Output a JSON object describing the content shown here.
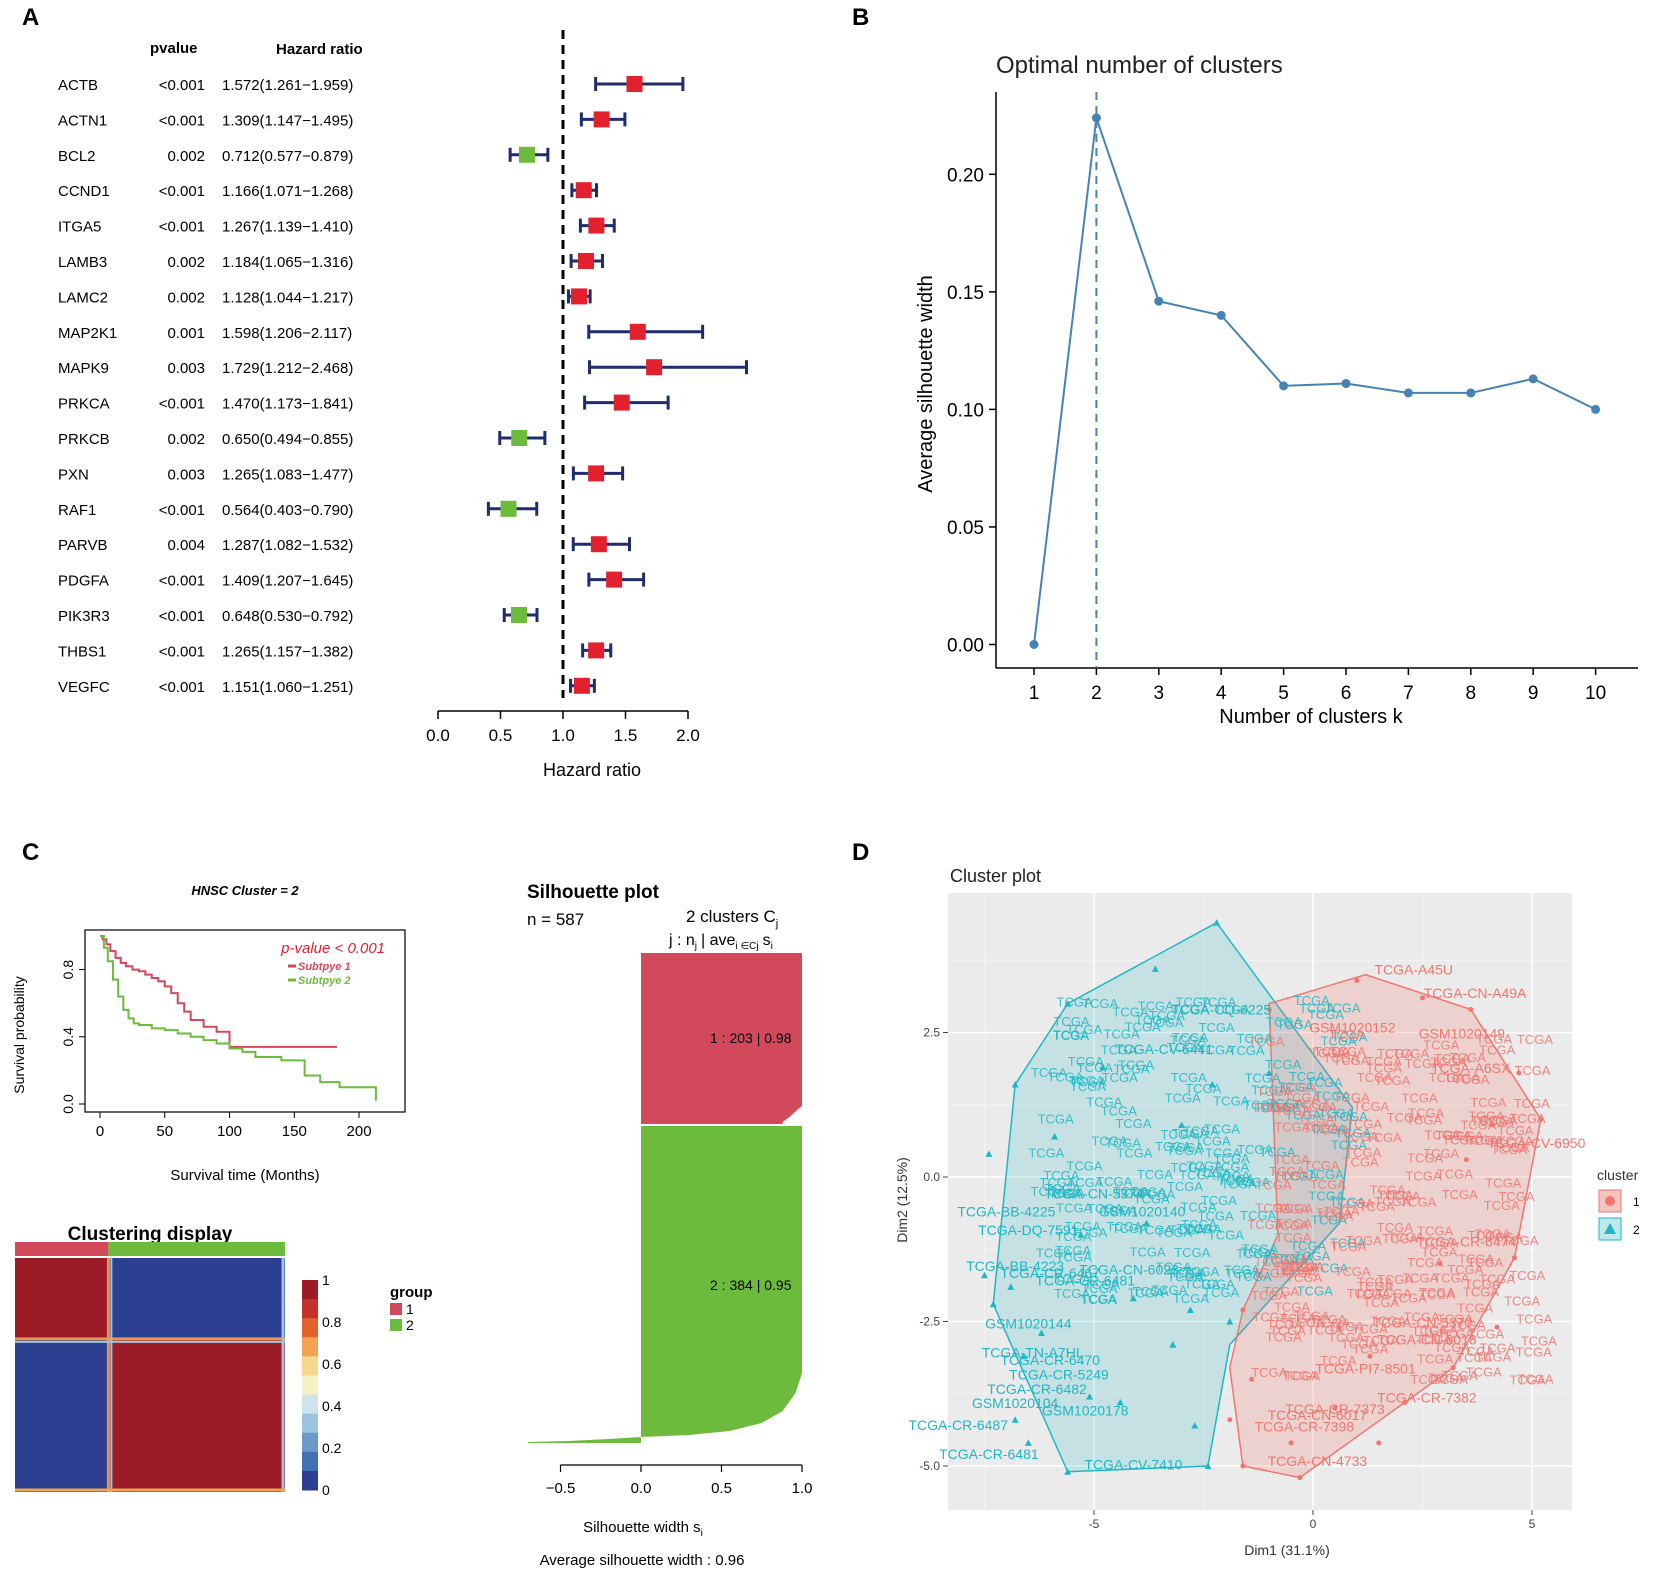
{
  "panels": {
    "A": "A",
    "B": "B",
    "C": "C",
    "D": "D"
  },
  "chart_data": [
    {
      "type": "forest",
      "panel": "A",
      "header_pvalue": "pvalue",
      "header_hr": "Hazard ratio",
      "xlabel": "Hazard ratio",
      "xlim": [
        0,
        2.0
      ],
      "xticks": [
        "0.0",
        "0.5",
        "1.0",
        "1.5",
        "2.0"
      ],
      "reference_line": 1.0,
      "colors": {
        "risk": "#e3202e",
        "protective": "#6cbb3c",
        "ci": "#1f2d6e"
      },
      "rows": [
        {
          "gene": "ACTB",
          "pvalue": "<0.001",
          "hr_text": "1.572(1.261−1.959)",
          "hr": 1.572,
          "lo": 1.261,
          "hi": 1.959
        },
        {
          "gene": "ACTN1",
          "pvalue": "<0.001",
          "hr_text": "1.309(1.147−1.495)",
          "hr": 1.309,
          "lo": 1.147,
          "hi": 1.495
        },
        {
          "gene": "BCL2",
          "pvalue": "0.002",
          "hr_text": "0.712(0.577−0.879)",
          "hr": 0.712,
          "lo": 0.577,
          "hi": 0.879
        },
        {
          "gene": "CCND1",
          "pvalue": "<0.001",
          "hr_text": "1.166(1.071−1.268)",
          "hr": 1.166,
          "lo": 1.071,
          "hi": 1.268
        },
        {
          "gene": "ITGA5",
          "pvalue": "<0.001",
          "hr_text": "1.267(1.139−1.410)",
          "hr": 1.267,
          "lo": 1.139,
          "hi": 1.41
        },
        {
          "gene": "LAMB3",
          "pvalue": "0.002",
          "hr_text": "1.184(1.065−1.316)",
          "hr": 1.184,
          "lo": 1.065,
          "hi": 1.316
        },
        {
          "gene": "LAMC2",
          "pvalue": "0.002",
          "hr_text": "1.128(1.044−1.217)",
          "hr": 1.128,
          "lo": 1.044,
          "hi": 1.217
        },
        {
          "gene": "MAP2K1",
          "pvalue": "0.001",
          "hr_text": "1.598(1.206−2.117)",
          "hr": 1.598,
          "lo": 1.206,
          "hi": 2.117
        },
        {
          "gene": "MAPK9",
          "pvalue": "0.003",
          "hr_text": "1.729(1.212−2.468)",
          "hr": 1.729,
          "lo": 1.212,
          "hi": 2.468
        },
        {
          "gene": "PRKCA",
          "pvalue": "<0.001",
          "hr_text": "1.470(1.173−1.841)",
          "hr": 1.47,
          "lo": 1.173,
          "hi": 1.841
        },
        {
          "gene": "PRKCB",
          "pvalue": "0.002",
          "hr_text": "0.650(0.494−0.855)",
          "hr": 0.65,
          "lo": 0.494,
          "hi": 0.855
        },
        {
          "gene": "PXN",
          "pvalue": "0.003",
          "hr_text": "1.265(1.083−1.477)",
          "hr": 1.265,
          "lo": 1.083,
          "hi": 1.477
        },
        {
          "gene": "RAF1",
          "pvalue": "<0.001",
          "hr_text": "0.564(0.403−0.790)",
          "hr": 0.564,
          "lo": 0.403,
          "hi": 0.79
        },
        {
          "gene": "PARVB",
          "pvalue": "0.004",
          "hr_text": "1.287(1.082−1.532)",
          "hr": 1.287,
          "lo": 1.082,
          "hi": 1.532
        },
        {
          "gene": "PDGFA",
          "pvalue": "<0.001",
          "hr_text": "1.409(1.207−1.645)",
          "hr": 1.409,
          "lo": 1.207,
          "hi": 1.645
        },
        {
          "gene": "PIK3R3",
          "pvalue": "<0.001",
          "hr_text": "0.648(0.530−0.792)",
          "hr": 0.648,
          "lo": 0.53,
          "hi": 0.792
        },
        {
          "gene": "THBS1",
          "pvalue": "<0.001",
          "hr_text": "1.265(1.157−1.382)",
          "hr": 1.265,
          "lo": 1.157,
          "hi": 1.382
        },
        {
          "gene": "VEGFC",
          "pvalue": "<0.001",
          "hr_text": "1.151(1.060−1.251)",
          "hr": 1.151,
          "lo": 1.06,
          "hi": 1.251
        }
      ]
    },
    {
      "type": "line",
      "panel": "B",
      "title": "Optimal number of clusters",
      "xlabel": "Number of clusters k",
      "ylabel": "Average silhouette width",
      "x": [
        1,
        2,
        3,
        4,
        5,
        6,
        7,
        8,
        9,
        10
      ],
      "y": [
        0.0,
        0.224,
        0.146,
        0.14,
        0.11,
        0.111,
        0.107,
        0.107,
        0.113,
        0.1
      ],
      "ylim": [
        -0.01,
        0.235
      ],
      "yticks": [
        "0.00",
        "0.05",
        "0.10",
        "0.15",
        "0.20"
      ],
      "optimal_k": 2,
      "color": "#4682b4"
    },
    {
      "type": "line",
      "panel": "C-survival",
      "title": "HNSC Cluster = 2",
      "xlabel": "Survival time (Months)",
      "ylabel": "Survival probability",
      "pvalue_label": "p-value < 0.001",
      "xticks": [
        "0",
        "50",
        "100",
        "150",
        "200"
      ],
      "yticks": [
        "0.0",
        "0.4",
        "0.8"
      ],
      "xlim": [
        0,
        220
      ],
      "ylim": [
        0,
        1.0
      ],
      "series": [
        {
          "name": "Subtpye 1",
          "color": "#d1495b",
          "x": [
            0,
            2,
            5,
            8,
            12,
            16,
            20,
            25,
            30,
            35,
            40,
            45,
            50,
            55,
            60,
            65,
            70,
            80,
            90,
            100,
            110,
            120,
            140,
            160,
            183
          ],
          "y": [
            1.0,
            0.98,
            0.95,
            0.91,
            0.87,
            0.84,
            0.82,
            0.8,
            0.79,
            0.77,
            0.75,
            0.73,
            0.7,
            0.66,
            0.6,
            0.55,
            0.5,
            0.46,
            0.43,
            0.34,
            0.34,
            0.34,
            0.34,
            0.34,
            0.34
          ]
        },
        {
          "name": "Subtpye 2",
          "color": "#6cbb3c",
          "x": [
            0,
            3,
            6,
            10,
            14,
            18,
            22,
            26,
            30,
            40,
            50,
            60,
            70,
            80,
            90,
            100,
            110,
            120,
            140,
            155,
            158,
            170,
            185,
            200,
            213
          ],
          "y": [
            1.0,
            0.93,
            0.85,
            0.74,
            0.64,
            0.56,
            0.51,
            0.48,
            0.47,
            0.45,
            0.44,
            0.42,
            0.4,
            0.38,
            0.36,
            0.33,
            0.31,
            0.28,
            0.26,
            0.26,
            0.17,
            0.13,
            0.1,
            0.1,
            0.02
          ]
        }
      ]
    },
    {
      "type": "heatmap",
      "panel": "C-consensus",
      "title": "Clustering display",
      "legend_title": "group",
      "groups": [
        {
          "label": "1",
          "color": "#d1495b",
          "size": 203
        },
        {
          "label": "2",
          "color": "#6cbb3c",
          "size": 384
        }
      ],
      "scale_labels": [
        "1",
        "0.8",
        "0.6",
        "0.4",
        "0.2",
        "0"
      ],
      "scale_colors": [
        "#9b1c27",
        "#c6302a",
        "#e2622e",
        "#f2a453",
        "#f6d78f",
        "#f4f1c7",
        "#cfe3ec",
        "#9cc4de",
        "#6b9ac8",
        "#4471b2",
        "#2d3f91"
      ]
    },
    {
      "type": "bar",
      "panel": "C-silhouette",
      "title": "Silhouette plot",
      "n_label": "n = 587",
      "clusters_label": "2  clusters  C",
      "clusters_sub": "j",
      "header_j": "j :  n",
      "header_sub_j": "j",
      "header_ave": "| ave",
      "header_sub_ave": "i ∈Cj",
      "header_s": "s",
      "header_sub_s": "i",
      "xlabel": "Silhouette width s",
      "xlabel_sub": "i",
      "xticks": [
        "−0.5",
        "0.0",
        "0.5",
        "1.0"
      ],
      "xlim": [
        -0.7,
        1.0
      ],
      "average_label": "Average silhouette width :  0.96",
      "clusters": [
        {
          "j": 1,
          "n": 203,
          "ave": 0.98,
          "label": "1 :   203  |  0.98",
          "color": "#d1495b",
          "min_width": 0.88
        },
        {
          "j": 2,
          "n": 384,
          "ave": 0.95,
          "label": "2 :   384  |  0.95",
          "color": "#6cbb3c",
          "min_width": -0.7
        }
      ]
    },
    {
      "type": "scatter",
      "panel": "D",
      "title": "Cluster plot",
      "xlabel": "Dim1 (31.1%)",
      "ylabel": "Dim2 (12.5%)",
      "xlim": [
        -8.4,
        5.9
      ],
      "ylim": [
        -5.8,
        4.7
      ],
      "xticks": [
        "-5",
        "0",
        "5"
      ],
      "yticks": [
        "2.5",
        "0.0",
        "-2.5",
        "-5.0"
      ],
      "legend_title": "cluster",
      "legend": [
        {
          "label": "1",
          "color": "#f0766e"
        },
        {
          "label": "2",
          "color": "#1fb7c4"
        }
      ],
      "labels_cluster1": [
        "TCGA-CN-A49A",
        "TCGA-CN-5370",
        "TCGA-CN-6018",
        "TCGA-PI7-8501",
        "TCGA-CR-7382",
        "TCGA-CN-6017",
        "TCGA-CN-4733",
        "TCGA-CR-6474",
        "TCGA-A45U",
        "TCGA-A6SX",
        "GSM1020152",
        "GSM1020149",
        "TCGA-CV-6950",
        "TCGA-CR-7398",
        "TCGA-CR-7373"
      ],
      "labels_cluster2": [
        "TCGA-CQ-6225",
        "TCGA-CV-6441",
        "TCGA-CN-5374",
        "TCGA-BB-4225",
        "TCGA-DQ-7591",
        "TCGA-BB-4223",
        "TCGA-CR-6467",
        "TCGA-TN-A7HL",
        "TCGA-CR-6470",
        "TCGA-CR-5249",
        "TCGA-CR-6482",
        "GSM1020104",
        "GSM1020178",
        "GSM1020144",
        "TCGA-CR-6487",
        "TCGA-CR-6481",
        "TCGA-CV-7410",
        "TCGA-CN-6023",
        "TCGA-CR-6481",
        "GSM1020140"
      ],
      "points_cluster1": [
        [
          -1.9,
          -4.2
        ],
        [
          -1.6,
          -5.0
        ],
        [
          -0.3,
          -5.2
        ],
        [
          2.1,
          -3.9
        ],
        [
          3.2,
          -3.3
        ],
        [
          4.2,
          -2.6
        ],
        [
          4.6,
          -1.4
        ],
        [
          5.2,
          1.0
        ],
        [
          4.7,
          1.8
        ],
        [
          3.6,
          2.9
        ],
        [
          2.5,
          3.1
        ],
        [
          1.0,
          3.4
        ],
        [
          -1.0,
          2.9
        ],
        [
          -1.6,
          -2.3
        ],
        [
          -1.4,
          -3.5
        ],
        [
          0.5,
          -4.0
        ],
        [
          1.5,
          -4.6
        ],
        [
          0.6,
          -2.6
        ],
        [
          1.3,
          -3.1
        ],
        [
          3.5,
          0.3
        ],
        [
          2.9,
          -1.5
        ],
        [
          4.1,
          0.9
        ],
        [
          -0.5,
          -4.6
        ]
      ],
      "points_cluster2": [
        [
          -2.2,
          4.4
        ],
        [
          -3.6,
          3.6
        ],
        [
          -5.6,
          3.0
        ],
        [
          -6.8,
          1.6
        ],
        [
          -7.4,
          0.4
        ],
        [
          -7.5,
          -1.7
        ],
        [
          -7.3,
          -2.2
        ],
        [
          -6.6,
          -3.1
        ],
        [
          -6.8,
          -4.2
        ],
        [
          -6.5,
          -4.6
        ],
        [
          -5.6,
          -5.1
        ],
        [
          -2.4,
          -5.0
        ],
        [
          -2.7,
          -4.3
        ],
        [
          -4.4,
          -3.9
        ],
        [
          -5.1,
          -3.8
        ],
        [
          -6.2,
          -2.7
        ],
        [
          -6.9,
          -1.9
        ],
        [
          -5.3,
          -1.0
        ],
        [
          -4.1,
          -2.1
        ],
        [
          -3.2,
          -2.9
        ],
        [
          -2.8,
          -2.3
        ],
        [
          -1.9,
          -2.5
        ],
        [
          -4.8,
          1.9
        ],
        [
          -3.0,
          0.9
        ],
        [
          -2.3,
          1.6
        ],
        [
          -1.0,
          1.8
        ],
        [
          -5.9,
          0.7
        ],
        [
          -3.8,
          -0.8
        ]
      ]
    }
  ]
}
